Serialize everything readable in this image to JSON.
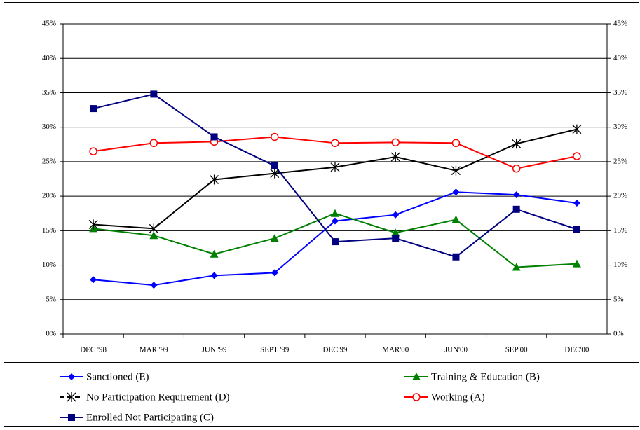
{
  "chart_data": {
    "type": "line",
    "categories": [
      "DEC '98",
      "MAR '99",
      "JUN '99",
      "SEPT '99",
      "DEC'99",
      "MAR'00",
      "JUN'00",
      "SEP'00",
      "DEC'00"
    ],
    "series": [
      {
        "name": "Sanctioned (E)",
        "color": "#0000ff",
        "marker": "diamond",
        "values": [
          7.9,
          7.1,
          8.5,
          8.9,
          16.4,
          17.3,
          20.6,
          20.2,
          19.0
        ]
      },
      {
        "name": "Training & Education (B)",
        "color": "#008000",
        "marker": "triangle",
        "values": [
          15.3,
          14.3,
          11.6,
          13.9,
          17.5,
          14.7,
          16.6,
          9.7,
          10.2
        ]
      },
      {
        "name": "No Participation Requirement (D)",
        "color": "#000000",
        "marker": "star",
        "values": [
          15.9,
          15.3,
          22.4,
          23.3,
          24.2,
          25.7,
          23.7,
          27.6,
          29.7
        ]
      },
      {
        "name": "Working (A)",
        "color": "#ff0000",
        "marker": "circle",
        "values": [
          26.5,
          27.7,
          27.9,
          28.6,
          27.7,
          27.8,
          27.7,
          24.0,
          25.8
        ]
      },
      {
        "name": "Enrolled Not Participating (C)",
        "color": "#000080",
        "marker": "square",
        "values": [
          32.7,
          34.8,
          28.6,
          24.4,
          13.4,
          13.9,
          11.2,
          18.1,
          15.2
        ]
      }
    ],
    "ylim": [
      0,
      45
    ],
    "yticks": [
      {
        "value": 0,
        "label": "0%"
      },
      {
        "value": 5,
        "label": "5%"
      },
      {
        "value": 10,
        "label": "10%"
      },
      {
        "value": 15,
        "label": "15%"
      },
      {
        "value": 20,
        "label": "20%"
      },
      {
        "value": 25,
        "label": "25%"
      },
      {
        "value": 30,
        "label": "30%"
      },
      {
        "value": 35,
        "label": "35%"
      },
      {
        "value": 40,
        "label": "40%"
      },
      {
        "value": 45,
        "label": "45%"
      }
    ],
    "grid": true,
    "legend": "bottom"
  }
}
